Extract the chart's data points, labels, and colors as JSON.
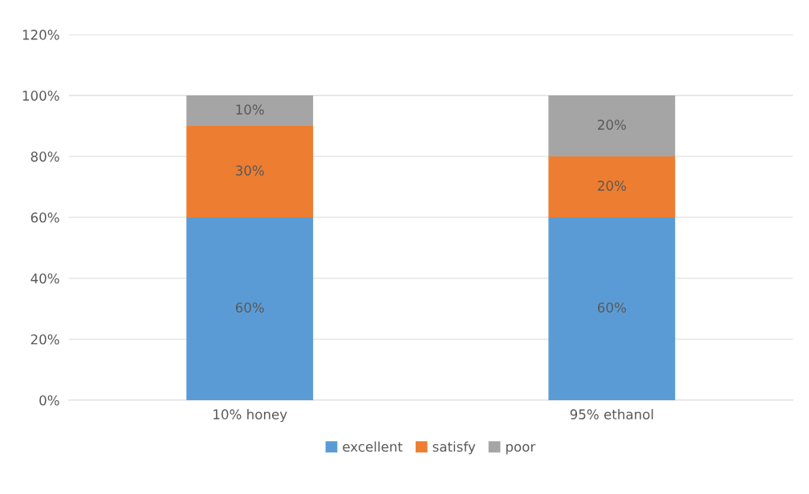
{
  "chart_data": {
    "type": "bar",
    "stacked": true,
    "categories": [
      "10% honey",
      "95% ethanol"
    ],
    "series": [
      {
        "name": "excellent",
        "color": "#5b9bd5",
        "values": [
          60,
          60
        ],
        "value_labels": [
          "60%",
          "60%"
        ]
      },
      {
        "name": "satisfy",
        "color": "#ed7d31",
        "values": [
          30,
          20
        ],
        "value_labels": [
          "30%",
          "20%"
        ]
      },
      {
        "name": "poor",
        "color": "#a5a5a5",
        "values": [
          10,
          20
        ],
        "value_labels": [
          "10%",
          "20%"
        ]
      }
    ],
    "ylim": [
      0,
      120
    ],
    "yticks": [
      {
        "value": 0,
        "label": "0%"
      },
      {
        "value": 20,
        "label": "20%"
      },
      {
        "value": 40,
        "label": "40%"
      },
      {
        "value": 60,
        "label": "60%"
      },
      {
        "value": 80,
        "label": "80%"
      },
      {
        "value": 100,
        "label": "100%"
      },
      {
        "value": 120,
        "label": "120%"
      }
    ],
    "grid": "y",
    "legend": "bottom"
  }
}
